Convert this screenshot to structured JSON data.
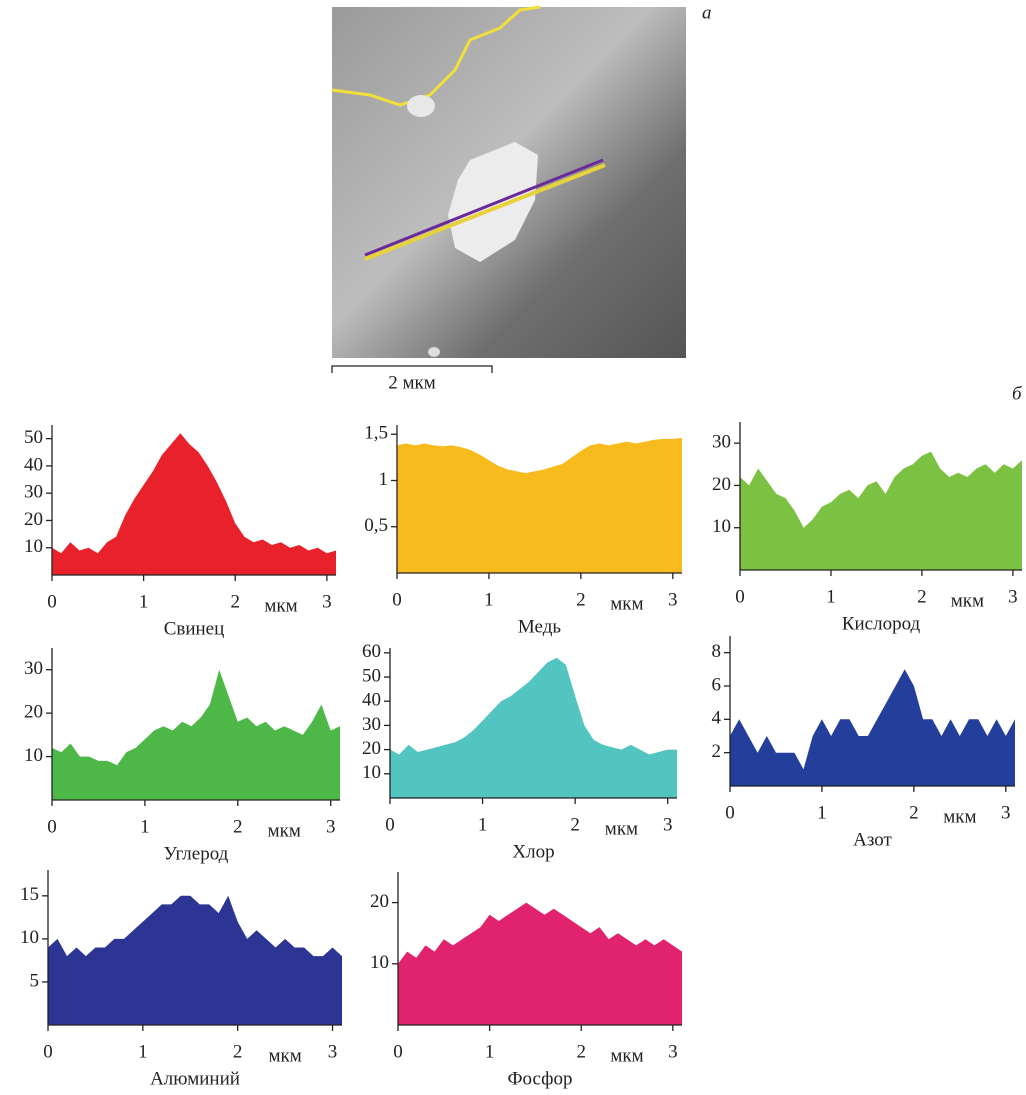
{
  "panel_labels": [
    "а",
    "б"
  ],
  "scale_bar": "2 мкм",
  "chart_data": [
    {
      "type": "area",
      "title": "Свинец",
      "x_label": "мкм",
      "color": "#e8212b",
      "xlim": [
        0,
        3.1
      ],
      "xticks": [
        0,
        1,
        2,
        3
      ],
      "ylim": [
        0,
        55
      ],
      "yticks": [
        10,
        20,
        30,
        40,
        50
      ],
      "x": [
        0,
        0.1,
        0.2,
        0.3,
        0.4,
        0.5,
        0.6,
        0.7,
        0.8,
        0.9,
        1,
        1.1,
        1.2,
        1.3,
        1.4,
        1.5,
        1.6,
        1.7,
        1.8,
        1.9,
        2,
        2.1,
        2.2,
        2.3,
        2.4,
        2.5,
        2.6,
        2.7,
        2.8,
        2.9,
        3,
        3.1
      ],
      "values": [
        10,
        8,
        12,
        9,
        10,
        8,
        12,
        14,
        22,
        28,
        33,
        38,
        44,
        48,
        52,
        48,
        45,
        40,
        34,
        27,
        19,
        14,
        12,
        13,
        11,
        12,
        10,
        11,
        9,
        10,
        8,
        9
      ]
    },
    {
      "type": "area",
      "title": "Медь",
      "x_label": "мкм",
      "color": "#f8bb1d",
      "xlim": [
        0,
        3.1
      ],
      "xticks": [
        0,
        1,
        2,
        3
      ],
      "ylim": [
        0,
        1.6
      ],
      "yticks": [
        {
          "value": 0.5,
          "label": "0,5"
        },
        1,
        {
          "value": 1.5,
          "label": "1,5"
        }
      ],
      "x": [
        0,
        0.1,
        0.2,
        0.3,
        0.4,
        0.5,
        0.6,
        0.7,
        0.8,
        0.9,
        1,
        1.1,
        1.2,
        1.3,
        1.4,
        1.5,
        1.6,
        1.7,
        1.8,
        1.9,
        2,
        2.1,
        2.2,
        2.3,
        2.4,
        2.5,
        2.6,
        2.7,
        2.8,
        2.9,
        3,
        3.1
      ],
      "values": [
        1.38,
        1.4,
        1.38,
        1.4,
        1.38,
        1.37,
        1.38,
        1.36,
        1.33,
        1.28,
        1.22,
        1.16,
        1.12,
        1.1,
        1.08,
        1.1,
        1.12,
        1.15,
        1.18,
        1.25,
        1.32,
        1.38,
        1.4,
        1.38,
        1.4,
        1.42,
        1.4,
        1.42,
        1.44,
        1.45,
        1.45,
        1.46
      ]
    },
    {
      "type": "area",
      "title": "Кислород",
      "x_label": "мкм",
      "color": "#7cc242",
      "xlim": [
        0,
        3.1
      ],
      "xticks": [
        0,
        1,
        2,
        3
      ],
      "ylim": [
        0,
        35
      ],
      "yticks": [
        10,
        20,
        30
      ],
      "x": [
        0,
        0.1,
        0.2,
        0.3,
        0.4,
        0.5,
        0.6,
        0.7,
        0.8,
        0.9,
        1,
        1.1,
        1.2,
        1.3,
        1.4,
        1.5,
        1.6,
        1.7,
        1.8,
        1.9,
        2,
        2.1,
        2.2,
        2.3,
        2.4,
        2.5,
        2.6,
        2.7,
        2.8,
        2.9,
        3,
        3.1
      ],
      "values": [
        22,
        20,
        24,
        21,
        18,
        17,
        14,
        10,
        12,
        15,
        16,
        18,
        19,
        17,
        20,
        21,
        18,
        22,
        24,
        25,
        27,
        28,
        24,
        22,
        23,
        22,
        24,
        25,
        23,
        25,
        24,
        26
      ]
    },
    {
      "type": "area",
      "title": "Углерод",
      "x_label": "мкм",
      "color": "#4db848",
      "xlim": [
        0,
        3.1
      ],
      "xticks": [
        0,
        1,
        2,
        3
      ],
      "ylim": [
        0,
        35
      ],
      "yticks": [
        10,
        20,
        30
      ],
      "x": [
        0,
        0.1,
        0.2,
        0.3,
        0.4,
        0.5,
        0.6,
        0.7,
        0.8,
        0.9,
        1,
        1.1,
        1.2,
        1.3,
        1.4,
        1.5,
        1.6,
        1.7,
        1.8,
        1.9,
        2,
        2.1,
        2.2,
        2.3,
        2.4,
        2.5,
        2.6,
        2.7,
        2.8,
        2.9,
        3,
        3.1
      ],
      "values": [
        12,
        11,
        13,
        10,
        10,
        9,
        9,
        8,
        11,
        12,
        14,
        16,
        17,
        16,
        18,
        17,
        19,
        22,
        30,
        24,
        18,
        19,
        17,
        18,
        16,
        17,
        16,
        15,
        18,
        22,
        16,
        17
      ]
    },
    {
      "type": "area",
      "title": "Хлор",
      "x_label": "мкм",
      "color": "#52c5c0",
      "xlim": [
        0,
        3.1
      ],
      "xticks": [
        0,
        1,
        2,
        3
      ],
      "ylim": [
        0,
        62
      ],
      "yticks": [
        10,
        20,
        30,
        40,
        50,
        60
      ],
      "x": [
        0,
        0.1,
        0.2,
        0.3,
        0.4,
        0.5,
        0.6,
        0.7,
        0.8,
        0.9,
        1,
        1.1,
        1.2,
        1.3,
        1.4,
        1.5,
        1.6,
        1.7,
        1.8,
        1.9,
        2,
        2.1,
        2.2,
        2.3,
        2.4,
        2.5,
        2.6,
        2.7,
        2.8,
        2.9,
        3,
        3.1
      ],
      "values": [
        20,
        18,
        22,
        19,
        20,
        21,
        22,
        23,
        25,
        28,
        32,
        36,
        40,
        42,
        45,
        48,
        52,
        56,
        58,
        55,
        42,
        30,
        24,
        22,
        21,
        20,
        22,
        20,
        18,
        19,
        20,
        20
      ]
    },
    {
      "type": "area",
      "title": "Азот",
      "x_label": "мкм",
      "color": "#243f9b",
      "xlim": [
        0,
        3.1
      ],
      "xticks": [
        0,
        1,
        2,
        3
      ],
      "ylim": [
        0,
        9
      ],
      "yticks": [
        2,
        4,
        6,
        8
      ],
      "x": [
        0,
        0.1,
        0.2,
        0.3,
        0.4,
        0.5,
        0.6,
        0.7,
        0.8,
        0.9,
        1,
        1.1,
        1.2,
        1.3,
        1.4,
        1.5,
        1.6,
        1.7,
        1.8,
        1.9,
        2,
        2.1,
        2.2,
        2.3,
        2.4,
        2.5,
        2.6,
        2.7,
        2.8,
        2.9,
        3,
        3.1
      ],
      "values": [
        3,
        4,
        3,
        2,
        3,
        2,
        2,
        2,
        1,
        3,
        4,
        3,
        4,
        4,
        3,
        3,
        4,
        5,
        6,
        7,
        6,
        4,
        4,
        3,
        4,
        3,
        4,
        4,
        3,
        4,
        3,
        4
      ]
    },
    {
      "type": "area",
      "title": "Алюминий",
      "x_label": "мкм",
      "color": "#2c3593",
      "xlim": [
        0,
        3.1
      ],
      "xticks": [
        0,
        1,
        2,
        3
      ],
      "ylim": [
        0,
        18
      ],
      "yticks": [
        5,
        10,
        15
      ],
      "x": [
        0,
        0.1,
        0.2,
        0.3,
        0.4,
        0.5,
        0.6,
        0.7,
        0.8,
        0.9,
        1,
        1.1,
        1.2,
        1.3,
        1.4,
        1.5,
        1.6,
        1.7,
        1.8,
        1.9,
        2,
        2.1,
        2.2,
        2.3,
        2.4,
        2.5,
        2.6,
        2.7,
        2.8,
        2.9,
        3,
        3.1
      ],
      "values": [
        9,
        10,
        8,
        9,
        8,
        9,
        9,
        10,
        10,
        11,
        12,
        13,
        14,
        14,
        15,
        15,
        14,
        14,
        13,
        15,
        12,
        10,
        11,
        10,
        9,
        10,
        9,
        9,
        8,
        8,
        9,
        8
      ]
    },
    {
      "type": "area",
      "title": "Фосфор",
      "x_label": "мкм",
      "color": "#e1226c",
      "xlim": [
        0,
        3.1
      ],
      "xticks": [
        0,
        1,
        2,
        3
      ],
      "ylim": [
        0,
        25
      ],
      "yticks": [
        10,
        20
      ],
      "x": [
        0,
        0.1,
        0.2,
        0.3,
        0.4,
        0.5,
        0.6,
        0.7,
        0.8,
        0.9,
        1,
        1.1,
        1.2,
        1.3,
        1.4,
        1.5,
        1.6,
        1.7,
        1.8,
        1.9,
        2,
        2.1,
        2.2,
        2.3,
        2.4,
        2.5,
        2.6,
        2.7,
        2.8,
        2.9,
        3,
        3.1
      ],
      "values": [
        10,
        12,
        11,
        13,
        12,
        14,
        13,
        14,
        15,
        16,
        18,
        17,
        18,
        19,
        20,
        19,
        18,
        19,
        18,
        17,
        16,
        15,
        16,
        14,
        15,
        14,
        13,
        14,
        13,
        14,
        13,
        12
      ]
    }
  ]
}
